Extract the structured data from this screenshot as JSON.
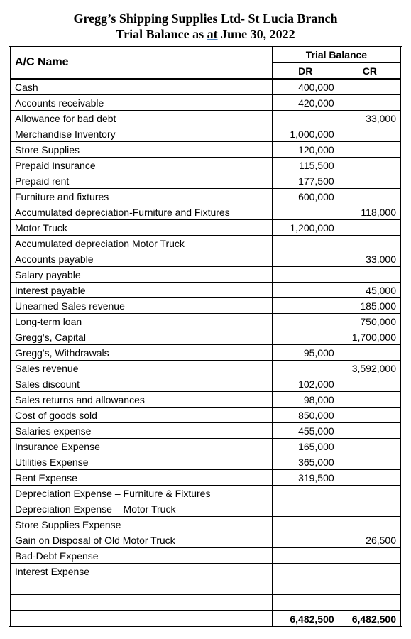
{
  "title": "Gregg’s Shipping Supplies Ltd- St Lucia Branch",
  "subtitle_prefix": "Trial Balance as ",
  "subtitle_at": "at",
  "subtitle_suffix": " June 30, 2022",
  "headers": {
    "acname": "A/C Name",
    "trial_balance": "Trial Balance",
    "dr": "DR",
    "cr": "CR"
  },
  "rows": [
    {
      "name": "Cash",
      "dr": "400,000",
      "cr": ""
    },
    {
      "name": "Accounts receivable",
      "dr": "420,000",
      "cr": ""
    },
    {
      "name": "Allowance for bad debt",
      "dr": "",
      "cr": "33,000"
    },
    {
      "name": "Merchandise Inventory",
      "dr": "1,000,000",
      "cr": ""
    },
    {
      "name": "Store Supplies",
      "dr": "120,000",
      "cr": ""
    },
    {
      "name": "Prepaid Insurance",
      "dr": "115,500",
      "cr": ""
    },
    {
      "name": "Prepaid rent",
      "dr": "177,500",
      "cr": ""
    },
    {
      "name": "Furniture and fixtures",
      "dr": "600,000",
      "cr": ""
    },
    {
      "name": "Accumulated depreciation-Furniture and Fixtures",
      "dr": "",
      "cr": "118,000"
    },
    {
      "name": "Motor Truck",
      "dr": "1,200,000",
      "cr": ""
    },
    {
      "name": "Accumulated depreciation Motor Truck",
      "dr": "",
      "cr": ""
    },
    {
      "name": "Accounts payable",
      "dr": "",
      "cr": "33,000"
    },
    {
      "name": "Salary payable",
      "dr": "",
      "cr": ""
    },
    {
      "name": "Interest payable",
      "dr": "",
      "cr": "45,000"
    },
    {
      "name": "Unearned Sales revenue",
      "dr": "",
      "cr": "185,000"
    },
    {
      "name": "Long-term loan",
      "dr": "",
      "cr": "750,000"
    },
    {
      "name": "Gregg's, Capital",
      "dr": "",
      "cr": "1,700,000"
    },
    {
      "name": "Gregg's, Withdrawals",
      "dr": "95,000",
      "cr": ""
    },
    {
      "name": "Sales revenue",
      "dr": "",
      "cr": "3,592,000"
    },
    {
      "name": "Sales discount",
      "dr": "102,000",
      "cr": ""
    },
    {
      "name": "Sales returns and allowances",
      "dr": "98,000",
      "cr": ""
    },
    {
      "name": "Cost of goods sold",
      "dr": "850,000",
      "cr": ""
    },
    {
      "name": "Salaries expense",
      "dr": "455,000",
      "cr": ""
    },
    {
      "name": "Insurance Expense",
      "dr": "165,000",
      "cr": ""
    },
    {
      "name": "Utilities Expense",
      "dr": "365,000",
      "cr": ""
    },
    {
      "name": "Rent Expense",
      "dr": "319,500",
      "cr": ""
    },
    {
      "name": "Depreciation Expense – Furniture & Fixtures",
      "dr": "",
      "cr": ""
    },
    {
      "name": "Depreciation Expense – Motor Truck",
      "dr": "",
      "cr": ""
    },
    {
      "name": "Store Supplies Expense",
      "dr": "",
      "cr": ""
    },
    {
      "name": "Gain on Disposal of Old Motor Truck",
      "dr": "",
      "cr": "26,500"
    },
    {
      "name": "Bad-Debt Expense",
      "dr": "",
      "cr": ""
    },
    {
      "name": "Interest Expense",
      "dr": "",
      "cr": ""
    },
    {
      "name": "",
      "dr": "",
      "cr": ""
    },
    {
      "name": "",
      "dr": "",
      "cr": ""
    }
  ],
  "totals": {
    "dr": "6,482,500",
    "cr": "6,482,500"
  }
}
